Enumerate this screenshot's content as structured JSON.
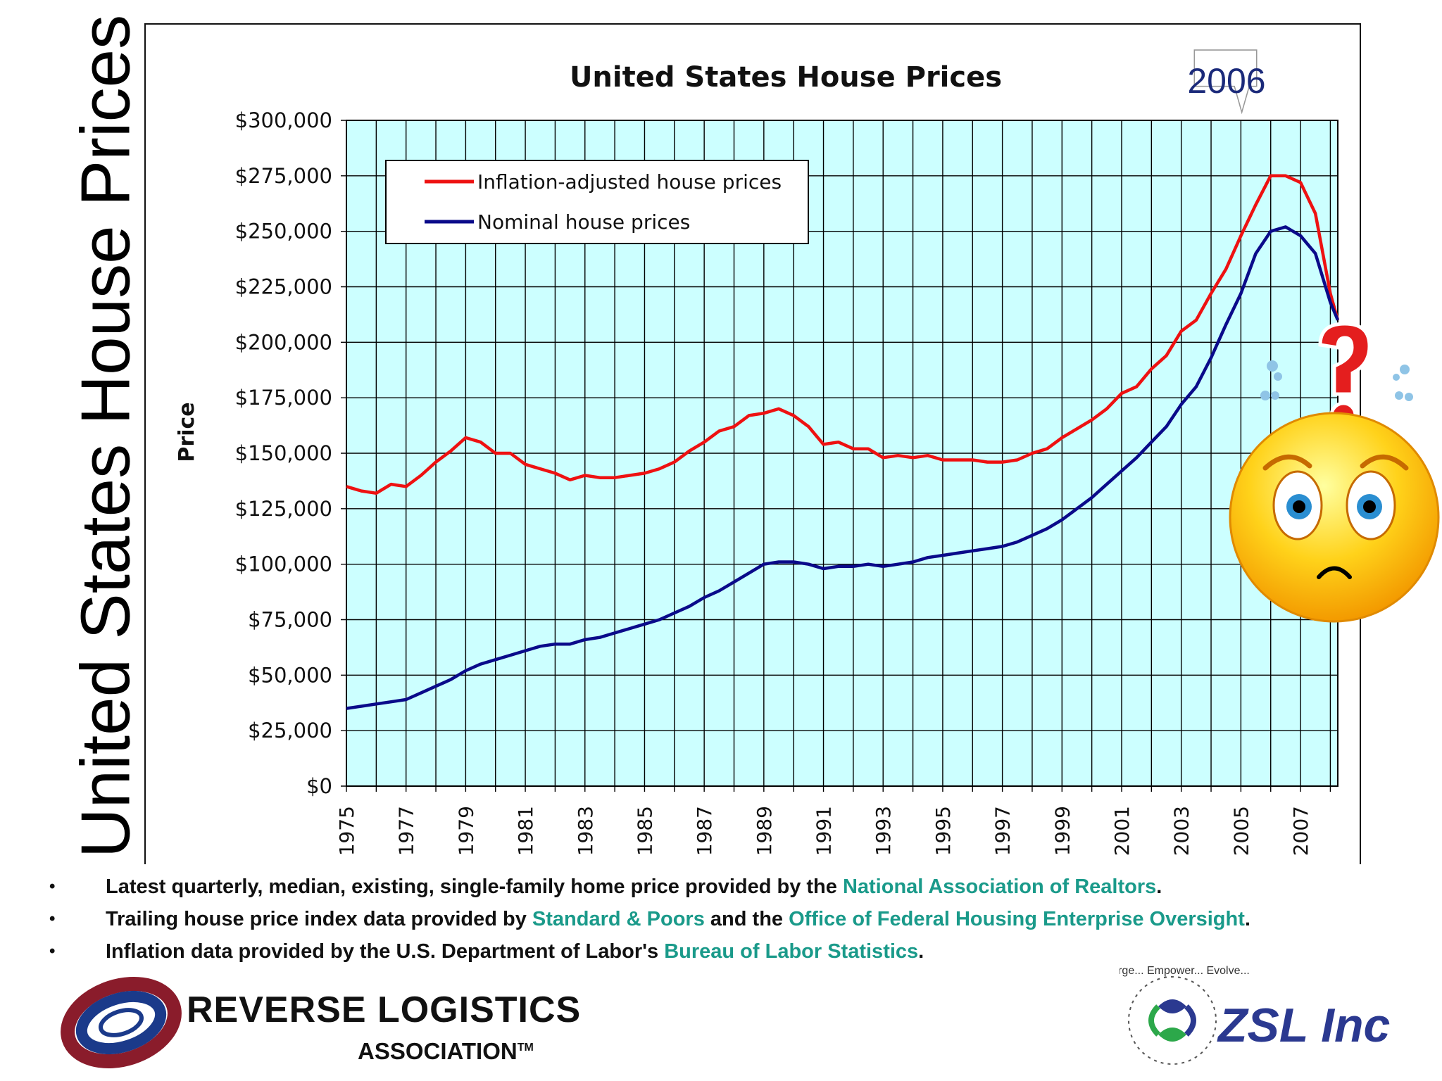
{
  "slide": {
    "vertical_title": "United States House Prices",
    "callout": "2006",
    "notes": [
      {
        "parts": [
          {
            "text": "Latest quarterly, median, existing, single-family home price provided by the ",
            "link": false
          },
          {
            "text": "National Association of Realtors",
            "link": true
          },
          {
            "text": ".",
            "link": false
          }
        ]
      },
      {
        "parts": [
          {
            "text": "Trailing house price index data provided by ",
            "link": false
          },
          {
            "text": "Standard & Poors",
            "link": true
          },
          {
            "text": " and the ",
            "link": false
          },
          {
            "text": "Office of Federal Housing Enterprise Oversight",
            "link": true
          },
          {
            "text": ".",
            "link": false
          }
        ]
      },
      {
        "parts": [
          {
            "text": "Inflation data provided by the U.S. Department of Labor's ",
            "link": false
          },
          {
            "text": "Bureau of Labor Statistics",
            "link": true
          },
          {
            "text": ".",
            "link": false
          }
        ]
      }
    ],
    "bullet": "•",
    "logos": {
      "rla_name": "REVERSE LOGISTICS",
      "rla_sub": "ASSOCIATION",
      "rla_tm": "TM",
      "zsl_name": "ZSL Inc",
      "zsl_ring_words": "Emerge... Empower... Evolve..."
    },
    "colors": {
      "plot_bg": "#ccffff",
      "inflation_line": "#ee1111",
      "nominal_line": "#0a0a8a",
      "link": "#1a9a8a"
    }
  },
  "chart_data": {
    "type": "line",
    "title": "United States House Prices",
    "xlabel": "",
    "ylabel": "Price",
    "xlim": [
      1975,
      2008.25
    ],
    "ylim": [
      0,
      300000
    ],
    "y_ticks": [
      0,
      25000,
      50000,
      75000,
      100000,
      125000,
      150000,
      175000,
      200000,
      225000,
      250000,
      275000,
      300000
    ],
    "y_tick_labels": [
      "$0",
      "$25,000",
      "$50,000",
      "$75,000",
      "$100,000",
      "$125,000",
      "$150,000",
      "$175,000",
      "$200,000",
      "$225,000",
      "$250,000",
      "$275,000",
      "$300,000"
    ],
    "x_tick_labels": [
      "1975",
      "1977",
      "1979",
      "1981",
      "1983",
      "1985",
      "1987",
      "1989",
      "1991",
      "1993",
      "1995",
      "1997",
      "1999",
      "2001",
      "2003",
      "2005",
      "2007"
    ],
    "grid": true,
    "legend_position": "top-left",
    "series": [
      {
        "name": "Inflation-adjusted house prices",
        "color": "#ee1111",
        "x": [
          1975,
          1975.5,
          1976,
          1976.5,
          1977,
          1977.5,
          1978,
          1978.5,
          1979,
          1979.5,
          1980,
          1980.5,
          1981,
          1981.5,
          1982,
          1982.5,
          1983,
          1983.5,
          1984,
          1984.5,
          1985,
          1985.5,
          1986,
          1986.5,
          1987,
          1987.5,
          1988,
          1988.5,
          1989,
          1989.5,
          1990,
          1990.5,
          1991,
          1991.5,
          1992,
          1992.5,
          1993,
          1993.5,
          1994,
          1994.5,
          1995,
          1995.5,
          1996,
          1996.5,
          1997,
          1997.5,
          1998,
          1998.5,
          1999,
          1999.5,
          2000,
          2000.5,
          2001,
          2001.5,
          2002,
          2002.5,
          2003,
          2003.5,
          2004,
          2004.5,
          2005,
          2005.5,
          2006,
          2006.5,
          2007,
          2007.5,
          2008,
          2008.25
        ],
        "y": [
          135000,
          133000,
          132000,
          136000,
          135000,
          140000,
          146000,
          151000,
          157000,
          155000,
          150000,
          150000,
          145000,
          143000,
          141000,
          138000,
          140000,
          139000,
          139000,
          140000,
          141000,
          143000,
          146000,
          151000,
          155000,
          160000,
          162000,
          167000,
          168000,
          170000,
          167000,
          162000,
          154000,
          155000,
          152000,
          152000,
          148000,
          149000,
          148000,
          149000,
          147000,
          147000,
          147000,
          146000,
          146000,
          147000,
          150000,
          152000,
          157000,
          161000,
          165000,
          170000,
          177000,
          180000,
          188000,
          194000,
          205000,
          210000,
          222000,
          233000,
          248000,
          262000,
          275000,
          275000,
          272000,
          258000,
          222000,
          210000
        ]
      },
      {
        "name": "Nominal house prices",
        "color": "#0a0a8a",
        "x": [
          1975,
          1975.5,
          1976,
          1976.5,
          1977,
          1977.5,
          1978,
          1978.5,
          1979,
          1979.5,
          1980,
          1980.5,
          1981,
          1981.5,
          1982,
          1982.5,
          1983,
          1983.5,
          1984,
          1984.5,
          1985,
          1985.5,
          1986,
          1986.5,
          1987,
          1987.5,
          1988,
          1988.5,
          1989,
          1989.5,
          1990,
          1990.5,
          1991,
          1991.5,
          1992,
          1992.5,
          1993,
          1993.5,
          1994,
          1994.5,
          1995,
          1995.5,
          1996,
          1996.5,
          1997,
          1997.5,
          1998,
          1998.5,
          1999,
          1999.5,
          2000,
          2000.5,
          2001,
          2001.5,
          2002,
          2002.5,
          2003,
          2003.5,
          2004,
          2004.5,
          2005,
          2005.5,
          2006,
          2006.5,
          2007,
          2007.5,
          2008,
          2008.25
        ],
        "y": [
          35000,
          36000,
          37000,
          38000,
          39000,
          42000,
          45000,
          48000,
          52000,
          55000,
          57000,
          59000,
          61000,
          63000,
          64000,
          64000,
          66000,
          67000,
          69000,
          71000,
          73000,
          75000,
          78000,
          81000,
          85000,
          88000,
          92000,
          96000,
          100000,
          101000,
          101000,
          100000,
          98000,
          99000,
          99000,
          100000,
          99000,
          100000,
          101000,
          103000,
          104000,
          105000,
          106000,
          107000,
          108000,
          110000,
          113000,
          116000,
          120000,
          125000,
          130000,
          136000,
          142000,
          148000,
          155000,
          162000,
          172000,
          180000,
          193000,
          208000,
          222000,
          240000,
          250000,
          252000,
          248000,
          240000,
          218000,
          210000
        ]
      }
    ]
  }
}
